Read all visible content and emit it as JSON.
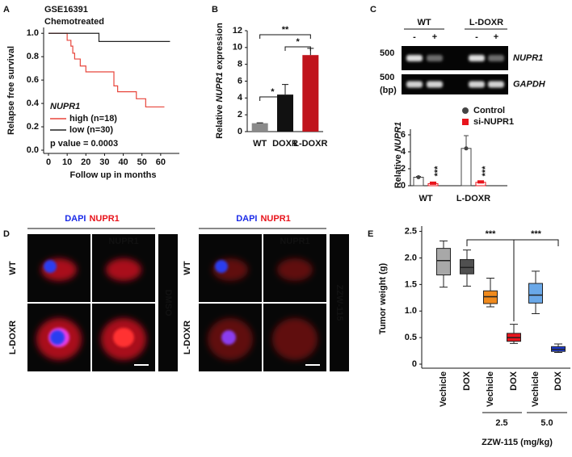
{
  "panel_labels": [
    "A",
    "B",
    "C",
    "D",
    "E"
  ],
  "chart_data": [
    {
      "type": "step",
      "title": "GSE16391",
      "subtitle": "Chemotreated",
      "xlabel": "Follow up in months",
      "ylabel": "Relapse free survival",
      "legend_title": "NUPR1",
      "annotation": "p value = 0.0003",
      "xlim": [
        0,
        70
      ],
      "xticks": [
        0,
        10,
        20,
        30,
        40,
        50,
        60
      ],
      "ylim": [
        0,
        1.05
      ],
      "yticks": [
        {
          "value": 0,
          "label": "0.0"
        },
        0.2,
        0.4,
        0.6,
        0.8,
        {
          "value": 1,
          "label": "1.0"
        }
      ],
      "series": [
        {
          "name": "high (n=18)",
          "color": "#e8463c",
          "x": [
            0,
            10,
            10,
            12,
            12,
            13,
            13,
            14,
            14,
            17,
            17,
            20,
            20,
            35,
            35,
            37,
            37,
            47,
            47,
            52,
            52,
            62
          ],
          "values": [
            1,
            1,
            0.94,
            0.94,
            0.89,
            0.89,
            0.83,
            0.83,
            0.78,
            0.78,
            0.72,
            0.72,
            0.67,
            0.67,
            0.55,
            0.55,
            0.5,
            0.5,
            0.44,
            0.44,
            0.37,
            0.37
          ]
        },
        {
          "name": "low (n=30)",
          "color": "#222222",
          "x": [
            0,
            27,
            27,
            65
          ],
          "values": [
            1,
            1,
            0.93,
            0.93
          ]
        }
      ]
    },
    {
      "type": "bar",
      "ylabel_parts": [
        "Relative ",
        "NUPR1",
        " expression"
      ],
      "categories": [
        "WT",
        "DOXR",
        "L-DOXR"
      ],
      "values": [
        1,
        4.4,
        9.1
      ],
      "errors": [
        0.05,
        1.2,
        0.8
      ],
      "colors": [
        "#8a8a8a",
        "#111111",
        "#c0141c"
      ],
      "ylim": [
        0,
        12
      ],
      "yticks": [
        0,
        2,
        4,
        6,
        8,
        10,
        12
      ],
      "significance": [
        "*",
        "*",
        "**"
      ]
    },
    {
      "type": "grouped_bar",
      "ylabel_parts": [
        "Relative ",
        "NUPR1"
      ],
      "categories": [
        "WT",
        "L-DOXR"
      ],
      "series": [
        {
          "name": "Control",
          "color": "#444444",
          "values": [
            1,
            4.4
          ],
          "errors": [
            0.1,
            1.5
          ]
        },
        {
          "name": "si-NUPR1",
          "color": "#e8141c",
          "values": [
            0.25,
            0.4
          ],
          "errors": [
            0.05,
            0.1
          ]
        }
      ],
      "ylim": [
        0,
        7
      ],
      "yticks": [
        0,
        2,
        4,
        6
      ],
      "significance": [
        "***",
        "***"
      ]
    },
    {
      "type": "box",
      "ylabel": "Tumor weight (g)",
      "xlabel": "ZZW-115 (mg/kg)",
      "categories": [
        "Vechicle",
        "DOX",
        "Vechicle",
        "DOX",
        "Vechicle",
        "DOX"
      ],
      "group_labels": [
        "2.5",
        "5.0"
      ],
      "colors": [
        "#a8a8a8",
        "#505050",
        "#f08a1c",
        "#e8141c",
        "#6aa8e8",
        "#1c3cd8"
      ],
      "boxes": [
        {
          "min": 1.45,
          "q1": 1.68,
          "median": 1.95,
          "q3": 2.18,
          "max": 2.32
        },
        {
          "min": 1.47,
          "q1": 1.7,
          "median": 1.82,
          "q3": 1.97,
          "max": 2.15
        },
        {
          "min": 1.08,
          "q1": 1.14,
          "median": 1.27,
          "q3": 1.38,
          "max": 1.62
        },
        {
          "min": 0.39,
          "q1": 0.43,
          "median": 0.5,
          "q3": 0.58,
          "max": 0.75
        },
        {
          "min": 0.95,
          "q1": 1.15,
          "median": 1.3,
          "q3": 1.52,
          "max": 1.75
        },
        {
          "min": 0.22,
          "q1": 0.24,
          "median": 0.28,
          "q3": 0.33,
          "max": 0.38
        }
      ],
      "ylim": [
        0,
        2.6
      ],
      "yticks": [
        0,
        0.5,
        {
          "value": 1,
          "label": "1.0"
        },
        1.5,
        {
          "value": 2,
          "label": "2.0"
        },
        2.5
      ],
      "significance": [
        "***",
        "***"
      ]
    }
  ],
  "gel": {
    "groups": [
      "WT",
      "L-DOXR"
    ],
    "lanes": [
      "-",
      "+",
      "-",
      "+"
    ],
    "treatment": "si-NUPR1",
    "markers": [
      "500",
      "500",
      "(bp)"
    ],
    "genes": [
      "NUPR1",
      "GAPDH"
    ]
  },
  "microscopy": {
    "stain_labels": [
      "DAPI",
      "NUPR1"
    ],
    "panels": [
      {
        "column_label": "NUPR1",
        "rows": [
          "WT",
          "L-DOXR"
        ],
        "treatment": "DMSO"
      },
      {
        "column_label": "NUPR1",
        "rows": [
          "WT",
          "L-DOXR"
        ],
        "treatment": "ZZW-115"
      }
    ]
  }
}
